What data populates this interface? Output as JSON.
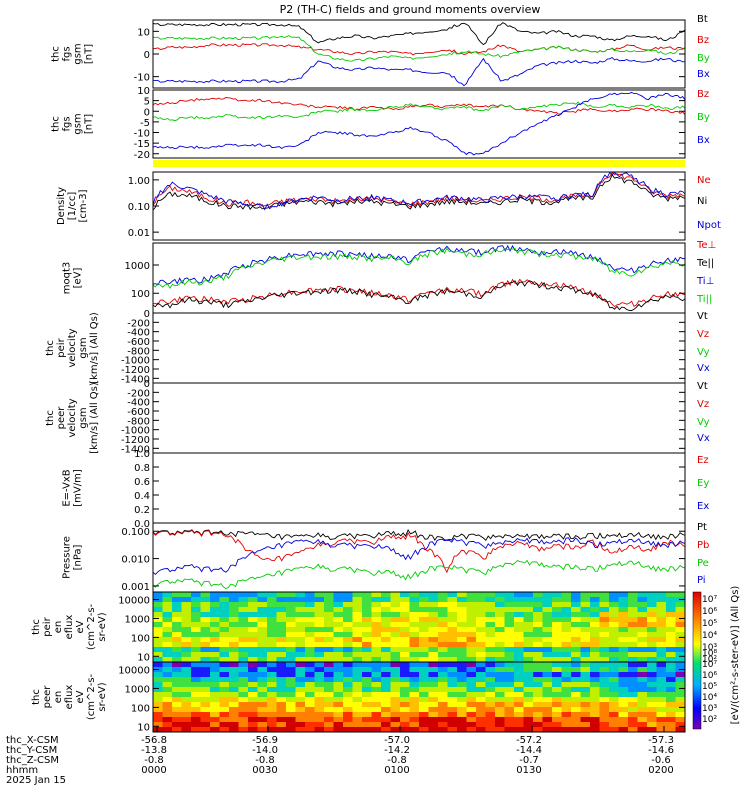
{
  "title": "P2 (TH-C) fields and ground moments overview",
  "footer": {
    "rows": [
      {
        "label": "thc_X-CSM",
        "values": [
          "-56.8",
          "-56.9",
          "-57.0",
          "-57.2",
          "-57.3"
        ]
      },
      {
        "label": "thc_Y-CSM",
        "values": [
          "-13.8",
          "-14.0",
          "-14.2",
          "-14.4",
          "-14.6"
        ]
      },
      {
        "label": "thc_Z-CSM",
        "values": [
          "-0.8",
          "-0.8",
          "-0.8",
          "-0.7",
          "-0.6"
        ]
      },
      {
        "label": "hhmm",
        "values": [
          "0000",
          "0030",
          "0100",
          "0130",
          "0200"
        ]
      }
    ],
    "date": "2025 Jan 15"
  },
  "colorbar": {
    "label": "[eV/(cm²-s-ster-eV)] (All Qs)",
    "ticks_top": [
      "10⁷",
      "10⁶",
      "10⁵",
      "10⁴",
      "10³",
      "10²"
    ],
    "ticks_bottom": [
      "10⁸",
      "10⁷",
      "10⁶",
      "10⁵",
      "10⁴",
      "10³",
      "10²"
    ]
  },
  "colors": {
    "black": "#000000",
    "red": "#e00000",
    "green": "#00cc00",
    "blue": "#0000dd",
    "yellow": "#ffff00"
  },
  "chart_data": [
    {
      "type": "line",
      "id": "fgs-gsm",
      "ylabel": [
        "thc",
        "fgs",
        "gsm",
        "[nT]"
      ],
      "ylim": [
        -15,
        15
      ],
      "yticks": [
        "10",
        "0",
        "-10"
      ],
      "legend": [
        "Bt",
        "Bz",
        "By",
        "Bx"
      ],
      "series": [
        {
          "name": "Bt",
          "color": "#000000",
          "values": [
            13,
            13,
            13,
            13,
            13,
            13,
            13,
            13,
            12,
            5,
            7,
            8,
            7,
            8,
            9,
            10,
            11,
            14,
            4,
            14,
            10,
            9,
            10,
            8,
            8,
            6,
            8,
            8,
            6,
            10
          ]
        },
        {
          "name": "Bz",
          "color": "#e00000",
          "values": [
            2,
            3,
            3,
            4,
            4,
            4,
            4,
            4,
            3,
            2,
            1,
            0,
            1,
            1,
            0,
            1,
            2,
            0,
            1,
            4,
            1,
            2,
            3,
            2,
            1,
            2,
            4,
            2,
            3,
            2
          ]
        },
        {
          "name": "By",
          "color": "#00cc00",
          "values": [
            7,
            7,
            7,
            7,
            7,
            7,
            7,
            8,
            7,
            0,
            -2,
            -3,
            -2,
            -1,
            -2,
            -1,
            0,
            1,
            0,
            -1,
            1,
            2,
            3,
            2,
            1,
            2,
            1,
            2,
            0,
            2
          ]
        },
        {
          "name": "Bx",
          "color": "#0000dd",
          "values": [
            -12,
            -12,
            -12,
            -12,
            -12,
            -12,
            -12,
            -12,
            -11,
            -3,
            -6,
            -7,
            -6,
            -7,
            -7,
            -8,
            -8,
            -14,
            -2,
            -12,
            -9,
            -5,
            -4,
            -3,
            -4,
            -2,
            -3,
            -3,
            -2,
            -4
          ]
        }
      ]
    },
    {
      "type": "line",
      "id": "fgs-gsm2",
      "ylabel": [
        "thc",
        "fgs",
        "gsm",
        "[nT]"
      ],
      "ylim": [
        -22,
        10
      ],
      "yticks": [
        "10",
        "5",
        "0",
        "-5",
        "-10",
        "-15",
        "-20"
      ],
      "legend": [
        "Bz",
        "By",
        "Bx"
      ],
      "series": [
        {
          "name": "Bz",
          "color": "#e00000",
          "values": [
            3,
            4,
            5,
            6,
            6,
            5,
            5,
            4,
            3,
            2,
            2,
            1,
            2,
            1,
            2,
            3,
            2,
            3,
            2,
            3,
            1,
            0,
            -1,
            0,
            1,
            0,
            1,
            1,
            0,
            -1
          ]
        },
        {
          "name": "By",
          "color": "#00cc00",
          "values": [
            -3,
            -4,
            -3,
            -3,
            -2,
            -3,
            -3,
            -2,
            -3,
            0,
            0,
            1,
            0,
            2,
            3,
            2,
            1,
            2,
            0,
            3,
            1,
            2,
            3,
            4,
            2,
            3,
            2,
            3,
            1,
            2
          ]
        },
        {
          "name": "Bx",
          "color": "#0000dd",
          "values": [
            -17,
            -17,
            -17,
            -17,
            -16,
            -16,
            -16,
            -17,
            -16,
            -10,
            -10,
            -11,
            -12,
            -10,
            -8,
            -10,
            -14,
            -20,
            -20,
            -15,
            -10,
            -6,
            -2,
            2,
            6,
            8,
            9,
            6,
            8,
            6
          ]
        }
      ]
    },
    {
      "type": "line",
      "id": "density",
      "ylabel": [
        "Density",
        "[1/cc]",
        "[cm-3]"
      ],
      "yscale": "log",
      "ylim": [
        0.005,
        2
      ],
      "yticks": [
        1.0,
        0.1,
        0.01
      ],
      "ytick_labels": [
        "1.00",
        "0.10",
        "0.01"
      ],
      "legend": [
        "Ne",
        "Ni",
        "Npot"
      ],
      "series": [
        {
          "name": "Ne",
          "color": "#e00000",
          "values": [
            0.12,
            0.5,
            0.35,
            0.2,
            0.12,
            0.15,
            0.1,
            0.15,
            0.18,
            0.2,
            0.15,
            0.18,
            0.2,
            0.15,
            0.12,
            0.15,
            0.2,
            0.18,
            0.15,
            0.2,
            0.22,
            0.2,
            0.18,
            0.25,
            0.25,
            1.8,
            1.2,
            0.4,
            0.25,
            0.3
          ]
        },
        {
          "name": "Ni",
          "color": "#000000",
          "values": [
            0.08,
            0.3,
            0.25,
            0.15,
            0.1,
            0.1,
            0.08,
            0.12,
            0.15,
            0.15,
            0.12,
            0.15,
            0.15,
            0.12,
            0.1,
            0.12,
            0.15,
            0.15,
            0.12,
            0.15,
            0.18,
            0.15,
            0.15,
            0.2,
            0.2,
            1.3,
            0.9,
            0.3,
            0.2,
            0.25
          ]
        },
        {
          "name": "Npot",
          "color": "#0000dd",
          "values": [
            0.1,
            0.7,
            0.45,
            0.25,
            0.15,
            0.12,
            0.09,
            0.13,
            0.18,
            0.22,
            0.16,
            0.2,
            0.22,
            0.16,
            0.13,
            0.16,
            0.21,
            0.2,
            0.16,
            0.21,
            0.23,
            0.22,
            0.2,
            0.27,
            0.27,
            2.0,
            1.4,
            0.45,
            0.28,
            0.32
          ]
        }
      ]
    },
    {
      "type": "line",
      "id": "temperature",
      "ylabel": [
        "moqt3",
        "[eV]"
      ],
      "yscale": "log",
      "ylim": [
        20,
        6000
      ],
      "yticks": [
        1000,
        100
      ],
      "ytick_labels": [
        "1000",
        "100"
      ],
      "legend": [
        "Te⊥",
        "Te||",
        "Ti⊥",
        "Ti||"
      ],
      "series": [
        {
          "name": "Te⊥",
          "color": "#e00000",
          "values": [
            50,
            50,
            70,
            60,
            50,
            60,
            80,
            100,
            120,
            130,
            140,
            130,
            100,
            80,
            60,
            100,
            140,
            120,
            100,
            200,
            300,
            250,
            200,
            150,
            100,
            40,
            40,
            60,
            100,
            80
          ]
        },
        {
          "name": "Te||",
          "color": "#000000",
          "values": [
            40,
            40,
            60,
            50,
            40,
            50,
            70,
            90,
            110,
            120,
            130,
            120,
            90,
            70,
            50,
            90,
            120,
            100,
            80,
            180,
            250,
            200,
            170,
            130,
            90,
            30,
            30,
            50,
            80,
            70
          ]
        },
        {
          "name": "Ti⊥",
          "color": "#0000dd",
          "values": [
            250,
            250,
            300,
            300,
            500,
            1000,
            1500,
            2000,
            2500,
            2500,
            2500,
            2500,
            2000,
            2000,
            1500,
            3000,
            4000,
            3000,
            3000,
            4000,
            4000,
            3000,
            3000,
            2500,
            2000,
            800,
            600,
            1000,
            1500,
            1500
          ]
        },
        {
          "name": "Ti||",
          "color": "#00cc00",
          "values": [
            200,
            200,
            250,
            250,
            400,
            800,
            1200,
            1700,
            2000,
            2000,
            2000,
            2000,
            1700,
            1700,
            1200,
            2500,
            3300,
            2500,
            2500,
            3300,
            3300,
            2500,
            2500,
            2000,
            1700,
            600,
            500,
            800,
            1200,
            1200
          ]
        }
      ]
    },
    {
      "type": "line",
      "id": "peir-velocity",
      "ylabel": [
        "thc",
        "peir",
        "velocity",
        "gsm",
        "[km/s] (All Qs)"
      ],
      "ylim": [
        -1500,
        0
      ],
      "yticks": [
        "0",
        "-200",
        "-400",
        "-600",
        "-800",
        "-1000",
        "-1200",
        "-1400"
      ],
      "legend": [
        "Vt",
        "Vz",
        "Vy",
        "Vx"
      ],
      "series": []
    },
    {
      "type": "line",
      "id": "peer-velocity",
      "ylabel": [
        "thc",
        "peer",
        "velocity",
        "gsm",
        "[km/s] (All Qs)"
      ],
      "ylim": [
        -1500,
        0
      ],
      "yticks": [
        "0",
        "-200",
        "-400",
        "-600",
        "-800",
        "-1000",
        "-1200",
        "-1400"
      ],
      "legend": [
        "Vt",
        "Vz",
        "Vy",
        "Vx"
      ],
      "series": []
    },
    {
      "type": "line",
      "id": "efield",
      "ylabel": [
        "E=-VxB",
        "[mV/m]"
      ],
      "ylim": [
        0,
        1
      ],
      "yticks": [
        "1.0",
        "0.8",
        "0.6",
        "0.4",
        "0.2",
        "0.0"
      ],
      "legend": [
        "Ez",
        "Ey",
        "Ex"
      ],
      "series": []
    },
    {
      "type": "line",
      "id": "pressure",
      "ylabel": [
        "Pressure",
        "[nPa]"
      ],
      "yscale": "log",
      "ylim": [
        0.0006,
        0.2
      ],
      "yticks": [
        0.1,
        0.01,
        0.001
      ],
      "ytick_labels": [
        "0.100",
        "0.010",
        "0.001"
      ],
      "legend": [
        "Pt",
        "Pb",
        "Pe",
        "Pi"
      ],
      "series": [
        {
          "name": "Pt",
          "color": "#000000",
          "values": [
            0.09,
            0.09,
            0.09,
            0.09,
            0.09,
            0.08,
            0.07,
            0.06,
            0.06,
            0.07,
            0.06,
            0.07,
            0.07,
            0.08,
            0.09,
            0.06,
            0.05,
            0.07,
            0.06,
            0.07,
            0.07,
            0.06,
            0.07,
            0.06,
            0.07,
            0.07,
            0.08,
            0.07,
            0.06,
            0.08
          ]
        },
        {
          "name": "Pb",
          "color": "#e00000",
          "values": [
            0.085,
            0.085,
            0.085,
            0.085,
            0.08,
            0.02,
            0.008,
            0.01,
            0.015,
            0.03,
            0.04,
            0.045,
            0.04,
            0.06,
            0.07,
            0.02,
            0.003,
            0.02,
            0.01,
            0.03,
            0.04,
            0.02,
            0.03,
            0.025,
            0.04,
            0.015,
            0.03,
            0.02,
            0.04,
            0.03
          ]
        },
        {
          "name": "Pe",
          "color": "#00cc00",
          "values": [
            0.001,
            0.0015,
            0.0015,
            0.0012,
            0.001,
            0.0015,
            0.002,
            0.003,
            0.004,
            0.005,
            0.004,
            0.004,
            0.003,
            0.003,
            0.002,
            0.004,
            0.005,
            0.004,
            0.003,
            0.006,
            0.008,
            0.006,
            0.005,
            0.005,
            0.004,
            0.006,
            0.008,
            0.005,
            0.004,
            0.005
          ]
        },
        {
          "name": "Pi",
          "color": "#0000dd",
          "values": [
            0.003,
            0.004,
            0.005,
            0.004,
            0.004,
            0.01,
            0.02,
            0.03,
            0.04,
            0.04,
            0.03,
            0.03,
            0.03,
            0.02,
            0.01,
            0.03,
            0.05,
            0.04,
            0.03,
            0.04,
            0.05,
            0.04,
            0.04,
            0.05,
            0.03,
            0.04,
            0.05,
            0.04,
            0.03,
            0.04
          ]
        }
      ]
    },
    {
      "type": "heatmap",
      "id": "peir-eflux",
      "ylabel": [
        "thc",
        "peir",
        "en",
        "eflux",
        "eV",
        "(cm^2-s-",
        "sr-eV)"
      ],
      "yscale": "log",
      "ylim": [
        5,
        25000
      ],
      "yticks": [
        10000,
        1000,
        100,
        10
      ],
      "ytick_labels": [
        "10000",
        "1000",
        "100",
        "10"
      ]
    },
    {
      "type": "heatmap",
      "id": "peer-eflux",
      "ylabel": [
        "thc",
        "peer",
        "en",
        "eflux",
        "eV",
        "(cm^2-s-",
        "sr-eV)"
      ],
      "yscale": "log",
      "ylim": [
        5,
        25000
      ],
      "yticks": [
        10000,
        1000,
        100,
        10
      ],
      "ytick_labels": [
        "10000",
        "1000",
        "100",
        "10"
      ]
    }
  ]
}
